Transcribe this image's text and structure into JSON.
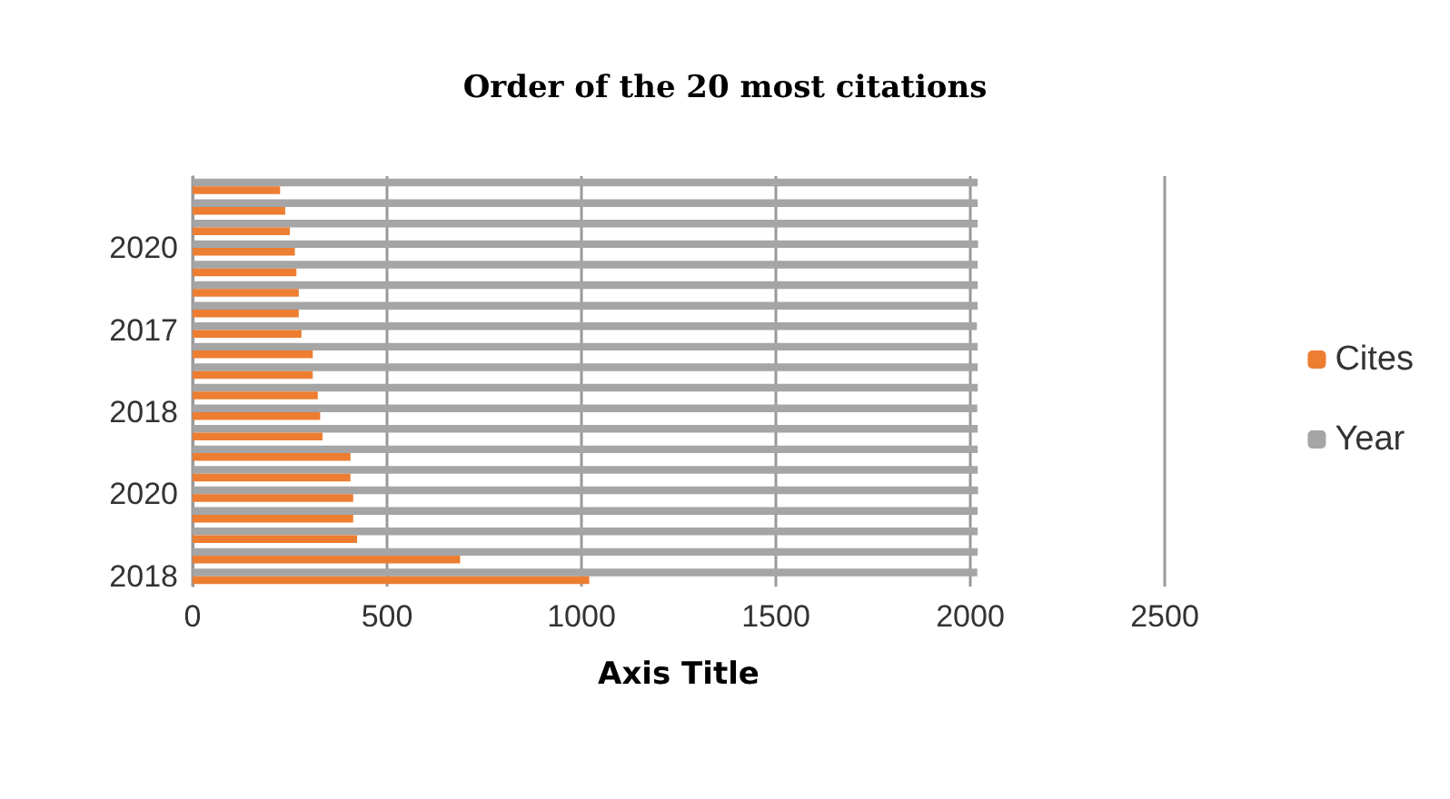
{
  "chart_data": {
    "type": "bar",
    "orientation": "horizontal",
    "title": "Order of the 20 most citations",
    "xlabel": "Axis Title",
    "categories": [
      null,
      null,
      null,
      "2020",
      null,
      null,
      null,
      "2017",
      null,
      null,
      null,
      "2018",
      null,
      null,
      null,
      "2020",
      null,
      null,
      null,
      "2018"
    ],
    "series": [
      {
        "name": "Year",
        "color": "#a5a5a5",
        "values": [
          2019,
          2019,
          2019,
          2020,
          2019,
          2019,
          2019,
          2017,
          2019,
          2019,
          2019,
          2018,
          2019,
          2019,
          2019,
          2020,
          2019,
          2019,
          2019,
          2018
        ]
      },
      {
        "name": "Cites",
        "color": "#ed7d31",
        "values": [
          225,
          238,
          250,
          263,
          267,
          273,
          273,
          280,
          309,
          309,
          322,
          328,
          334,
          406,
          406,
          413,
          413,
          423,
          688,
          1020
        ]
      }
    ],
    "xlim": [
      0,
      2500
    ],
    "xticks": [
      0,
      500,
      1000,
      1500,
      2000,
      2500
    ],
    "grid": "x",
    "legend": "right"
  }
}
